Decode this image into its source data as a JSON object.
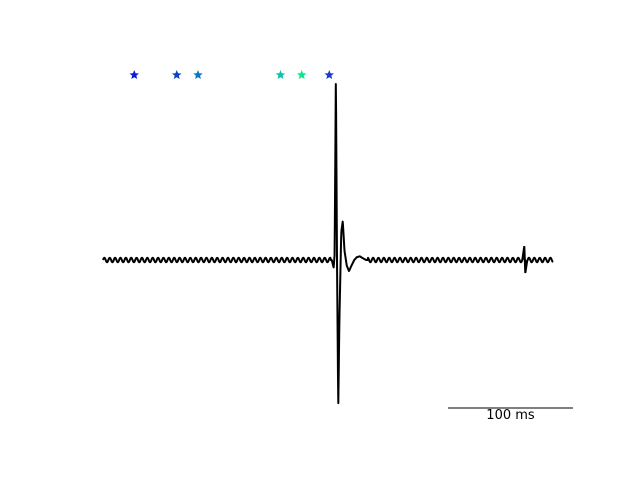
{
  "chart_data": {
    "type": "line",
    "title": "",
    "xlabel": "",
    "ylabel": "",
    "axes_visible": false,
    "grid": false,
    "units": {
      "x": "ms",
      "y": "normalized"
    },
    "xlim": [
      0,
      360
    ],
    "ylim": [
      -1.0,
      1.0
    ],
    "trace": {
      "color": "#000000",
      "baseline": 0,
      "baseline_noise_amplitude": 0.012,
      "baseline_noise_period_ms": 4.3,
      "points": [
        [
          0,
          0
        ],
        [
          183,
          0
        ],
        [
          184.5,
          -0.04
        ],
        [
          185.3,
          0.03
        ],
        [
          186.3,
          1.0
        ],
        [
          187.2,
          0.0
        ],
        [
          188.2,
          -0.8
        ],
        [
          189.1,
          -0.33
        ],
        [
          190.6,
          0.15
        ],
        [
          191.8,
          0.21
        ],
        [
          193.2,
          0.05
        ],
        [
          195.0,
          -0.03
        ],
        [
          196.8,
          -0.06
        ],
        [
          198.8,
          -0.03
        ],
        [
          201.0,
          0.0
        ],
        [
          203.0,
          0.015
        ],
        [
          205.4,
          0.02
        ],
        [
          207.8,
          0.01
        ],
        [
          210.5,
          0.0
        ],
        [
          360,
          0
        ]
      ],
      "artifact": {
        "x": 337,
        "up": 0.075,
        "down": -0.07
      }
    },
    "markers": {
      "shape": "star",
      "y": 1.0,
      "points": [
        {
          "x": 25,
          "color": "#0a1cd6"
        },
        {
          "x": 59,
          "color": "#0a42c8"
        },
        {
          "x": 76,
          "color": "#0a78c0"
        },
        {
          "x": 142,
          "color": "#0ac2b0"
        },
        {
          "x": 159,
          "color": "#0ae690"
        },
        {
          "x": 181,
          "color": "#1a3ad6"
        }
      ]
    },
    "scalebar": {
      "length_ms": 100,
      "label": "100 ms"
    }
  }
}
